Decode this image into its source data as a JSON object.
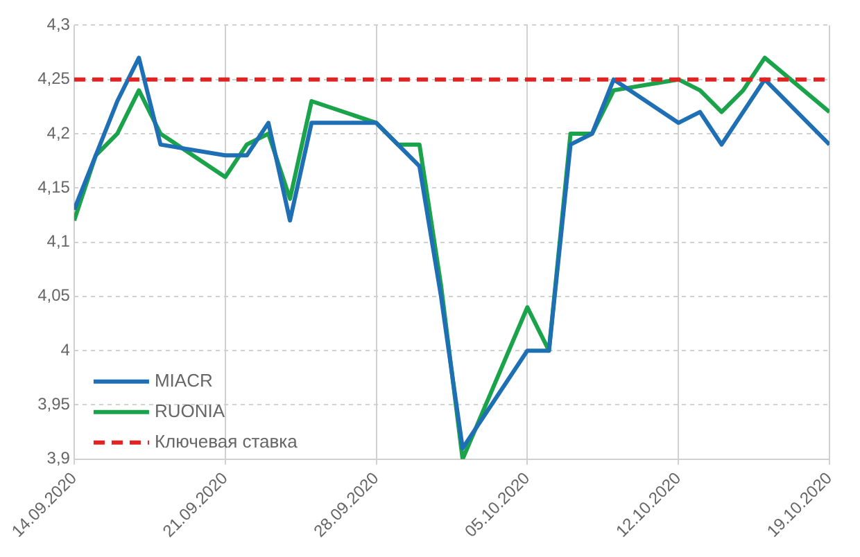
{
  "chart_data": {
    "type": "line",
    "x": [
      "2020-09-14",
      "2020-09-15",
      "2020-09-16",
      "2020-09-17",
      "2020-09-18",
      "2020-09-21",
      "2020-09-22",
      "2020-09-23",
      "2020-09-24",
      "2020-09-25",
      "2020-09-28",
      "2020-09-29",
      "2020-09-30",
      "2020-10-01",
      "2020-10-02",
      "2020-10-05",
      "2020-10-06",
      "2020-10-07",
      "2020-10-08",
      "2020-10-09",
      "2020-10-12",
      "2020-10-13",
      "2020-10-14",
      "2020-10-15",
      "2020-10-16",
      "2020-10-19"
    ],
    "series": [
      {
        "name": "MIACR",
        "color": "#1f6fb5",
        "values": [
          4.13,
          4.18,
          4.23,
          4.27,
          4.19,
          4.18,
          4.18,
          4.21,
          4.12,
          4.21,
          4.21,
          4.19,
          4.17,
          4.05,
          3.91,
          4.0,
          4.0,
          4.19,
          4.2,
          4.25,
          4.21,
          4.22,
          4.19,
          4.22,
          4.25,
          4.19
        ]
      },
      {
        "name": "RUONIA",
        "color": "#1aa34a",
        "values": [
          4.12,
          4.18,
          4.2,
          4.24,
          4.2,
          4.16,
          4.19,
          4.2,
          4.14,
          4.23,
          4.21,
          4.19,
          4.19,
          4.06,
          3.9,
          4.04,
          4.0,
          4.2,
          4.2,
          4.24,
          4.25,
          4.24,
          4.22,
          4.24,
          4.27,
          4.22
        ]
      }
    ],
    "ref_lines": [
      {
        "axis": "y",
        "value": 4.25,
        "label": "Ключевая ставка",
        "color": "#e02424",
        "line_style": "dashed"
      }
    ],
    "xlim": [
      "2020-09-14",
      "2020-10-19"
    ],
    "xticks": [
      {
        "value": "2020-09-14",
        "label": "14.09.2020"
      },
      {
        "value": "2020-09-21",
        "label": "21.09.2020"
      },
      {
        "value": "2020-09-28",
        "label": "28.09.2020"
      },
      {
        "value": "2020-10-05",
        "label": "05.10.2020"
      },
      {
        "value": "2020-10-12",
        "label": "12.10.2020"
      },
      {
        "value": "2020-10-19",
        "label": "19.10.2020"
      }
    ],
    "ylim": [
      3.9,
      4.3
    ],
    "yticks": [
      {
        "value": 3.9,
        "label": "3,9"
      },
      {
        "value": 3.95,
        "label": "3,95"
      },
      {
        "value": 4,
        "label": "4"
      },
      {
        "value": 4.05,
        "label": "4,05"
      },
      {
        "value": 4.1,
        "label": "4,1"
      },
      {
        "value": 4.15,
        "label": "4,15"
      },
      {
        "value": 4.2,
        "label": "4,2"
      },
      {
        "value": 4.25,
        "label": "4,25"
      },
      {
        "value": 4.3,
        "label": "4,3"
      }
    ],
    "grid": true,
    "legend": "bottom left",
    "marker": "none",
    "line_style": "solid"
  }
}
